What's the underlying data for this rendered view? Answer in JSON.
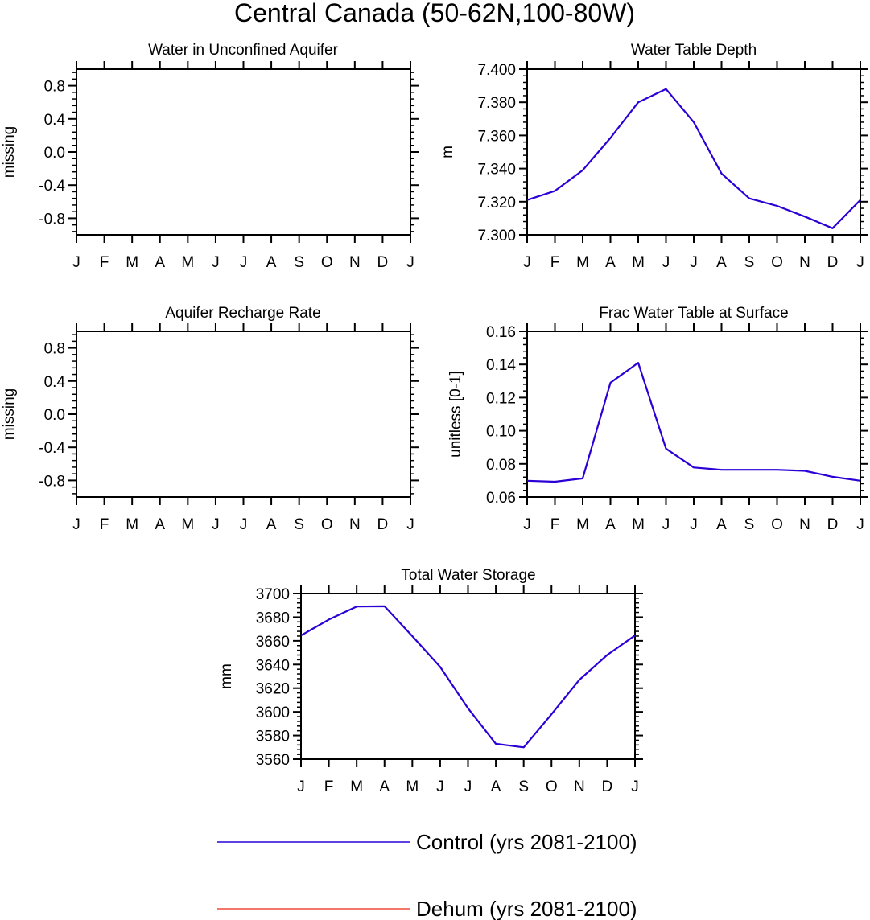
{
  "title": "Central Canada (50-62N,100-80W)",
  "colors": {
    "control": "#2B00D6",
    "dehum": "#F04A3A"
  },
  "legend": [
    {
      "label": "Control (yrs 2081-2100)",
      "color": "#2B00D6"
    },
    {
      "label": "Dehum (yrs 2081-2100)",
      "color": "#F04A3A"
    }
  ],
  "chart_data": [
    {
      "type": "line",
      "title": "Water in Unconfined Aquifer",
      "ylabel": "missing",
      "categories": [
        "J",
        "F",
        "M",
        "A",
        "M",
        "J",
        "J",
        "A",
        "S",
        "O",
        "N",
        "D",
        "J"
      ],
      "ylim": [
        -1.0,
        1.0
      ],
      "yticks": [
        -0.8,
        -0.4,
        0.0,
        0.4,
        0.8
      ],
      "ytick_labels": [
        "-0.8",
        "-0.4",
        "0.0",
        "0.4",
        "0.8"
      ],
      "series": []
    },
    {
      "type": "line",
      "title": "Water Table Depth",
      "ylabel": "m",
      "categories": [
        "J",
        "F",
        "M",
        "A",
        "M",
        "J",
        "J",
        "A",
        "S",
        "O",
        "N",
        "D",
        "J"
      ],
      "ylim": [
        7.3,
        7.4
      ],
      "yticks": [
        7.3,
        7.32,
        7.34,
        7.36,
        7.38,
        7.4
      ],
      "ytick_labels": [
        "7.300",
        "7.320",
        "7.340",
        "7.360",
        "7.380",
        "7.400"
      ],
      "series": [
        {
          "name": "Control (yrs 2081-2100)",
          "values": [
            7.321,
            7.3265,
            7.339,
            7.3585,
            7.38,
            7.388,
            7.368,
            7.337,
            7.322,
            7.3175,
            7.311,
            7.304,
            7.321
          ]
        }
      ]
    },
    {
      "type": "line",
      "title": "Aquifer Recharge Rate",
      "ylabel": "missing",
      "categories": [
        "J",
        "F",
        "M",
        "A",
        "M",
        "J",
        "J",
        "A",
        "S",
        "O",
        "N",
        "D",
        "J"
      ],
      "ylim": [
        -1.0,
        1.0
      ],
      "yticks": [
        -0.8,
        -0.4,
        0.0,
        0.4,
        0.8
      ],
      "ytick_labels": [
        "-0.8",
        "-0.4",
        "0.0",
        "0.4",
        "0.8"
      ],
      "series": []
    },
    {
      "type": "line",
      "title": "Frac Water Table at Surface",
      "ylabel": "unitless [0-1]",
      "categories": [
        "J",
        "F",
        "M",
        "A",
        "M",
        "J",
        "J",
        "A",
        "S",
        "O",
        "N",
        "D",
        "J"
      ],
      "ylim": [
        0.06,
        0.16
      ],
      "yticks": [
        0.06,
        0.08,
        0.1,
        0.12,
        0.14,
        0.16
      ],
      "ytick_labels": [
        "0.06",
        "0.08",
        "0.10",
        "0.12",
        "0.14",
        "0.16"
      ],
      "series": [
        {
          "name": "Control (yrs 2081-2100)",
          "values": [
            0.0698,
            0.0692,
            0.0712,
            0.129,
            0.141,
            0.0892,
            0.0778,
            0.0764,
            0.0764,
            0.0764,
            0.0758,
            0.0722,
            0.0698
          ]
        }
      ]
    },
    {
      "type": "line",
      "title": "Total Water Storage",
      "ylabel": "mm",
      "categories": [
        "J",
        "F",
        "M",
        "A",
        "M",
        "J",
        "J",
        "A",
        "S",
        "O",
        "N",
        "D",
        "J"
      ],
      "ylim": [
        3560,
        3700
      ],
      "yticks": [
        3560,
        3580,
        3600,
        3620,
        3640,
        3660,
        3680,
        3700
      ],
      "ytick_labels": [
        "3560",
        "3580",
        "3600",
        "3620",
        "3640",
        "3660",
        "3680",
        "3700"
      ],
      "series": [
        {
          "name": "Control (yrs 2081-2100)",
          "values": [
            3664.5,
            3678,
            3689,
            3689.2,
            3664,
            3638,
            3603,
            3573,
            3570,
            3598,
            3627,
            3648,
            3664.5
          ]
        }
      ]
    }
  ]
}
